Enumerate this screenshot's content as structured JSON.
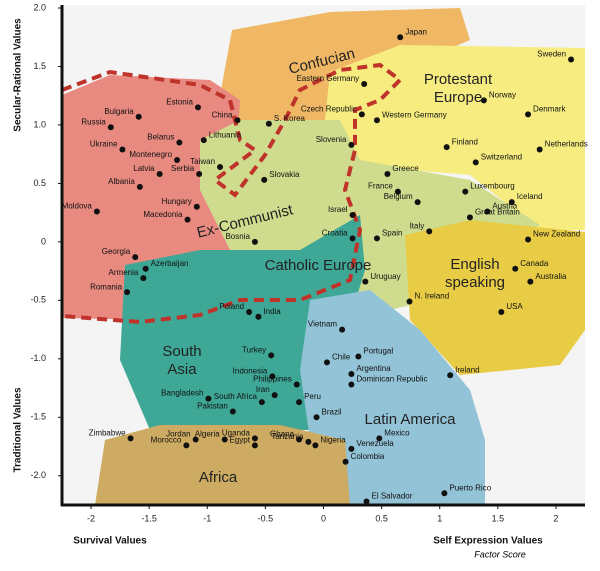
{
  "chart_data": {
    "type": "scatter",
    "ylabel_top": "Secular-Rational Values",
    "ylabel_bottom": "Traditional Values",
    "xlabel_left": "Survival Values",
    "xlabel_right": "Self Expression Values",
    "xlabel_note": "Factor Score",
    "xlim": [
      -2.25,
      2.25
    ],
    "ylim": [
      -2.25,
      2.0
    ],
    "xticks": [
      -2,
      -1.5,
      -1,
      -0.5,
      0,
      0.5,
      1,
      1.5,
      2
    ],
    "yticks": [
      {
        "value": 2,
        "label": "2.0"
      },
      1.5,
      {
        "value": 1,
        "label": "1.0"
      },
      0.5,
      0,
      -0.5,
      {
        "value": -1,
        "label": "-1.0"
      },
      -1.5,
      {
        "value": -2,
        "label": "-2.0"
      }
    ],
    "color": "#111111",
    "regions": [
      {
        "label": [
          "Confucian"
        ]
      },
      {
        "label": [
          "Protestant",
          "Europe"
        ]
      },
      {
        "label": [
          "Ex-Communist"
        ]
      },
      {
        "label": [
          "Catholic Europe"
        ]
      },
      {
        "label": [
          "English",
          "speaking"
        ]
      },
      {
        "label": [
          "South",
          "Asia"
        ]
      },
      {
        "label": [
          "Latin America"
        ]
      },
      {
        "label": [
          "Africa"
        ]
      }
    ],
    "labels": [
      "Japan",
      "Sweden",
      "Eastern Germany",
      "Norway",
      "Denmark",
      "Estonia",
      "Bulgaria",
      "Russia",
      "China",
      "Czech Republic",
      "Western Germany",
      "S. Korea",
      "Ukraine",
      "Belarus",
      "Lithuania",
      "Netherlands",
      "Slovenia",
      "Finland",
      "Montenegro",
      "Switzerland",
      "Latvia",
      "Serbia",
      "Taiwan",
      "Greece",
      "Albania",
      "Slovakia",
      "France",
      "Luxembourg",
      "Iceland",
      "Hungary",
      "Moldova",
      "Belgium",
      "Austria",
      "Israel",
      "Great Britain",
      "Macedonia",
      "Italy",
      "New Zealand",
      "Bosnia",
      "Croatia",
      "Spain",
      "Georgia",
      "Azerbaijan",
      "Canada",
      "Armenia",
      "Australia",
      "Uruguay",
      "Romania",
      "N. Ireland",
      "Poland",
      "India",
      "USA",
      "Vietnam",
      "Turkey",
      "Chile",
      "Portugal",
      "Indonesia",
      "Argentina",
      "Ireland",
      "Philippines",
      "Dominican Republic",
      "Bangladesh",
      "Iran",
      "Peru",
      "South Africa",
      "Pakistan",
      "Brazil",
      "Jordan",
      "Ghana",
      "Mexico",
      "Zimbabwe",
      "Morocco",
      "Uganda",
      "Algeria",
      "Egypt",
      "Nigeria",
      "Tanzania",
      "Venezuela",
      "Colombia",
      "Puerto Rico",
      "El Salvador"
    ],
    "x": [
      0.66,
      2.13,
      0.35,
      1.38,
      1.76,
      -1.08,
      -1.59,
      -1.83,
      -0.74,
      0.33,
      0.46,
      -0.47,
      -1.73,
      -1.24,
      -1.03,
      1.86,
      0.24,
      1.06,
      -1.26,
      1.31,
      -1.41,
      -1.07,
      -0.89,
      0.55,
      -1.58,
      -0.51,
      0.64,
      1.22,
      1.62,
      -1.09,
      -1.95,
      0.81,
      1.41,
      0.25,
      1.26,
      -1.17,
      0.91,
      1.76,
      -0.59,
      0.25,
      0.46,
      -1.62,
      -1.53,
      1.65,
      -1.55,
      1.78,
      0.36,
      -1.69,
      0.74,
      -0.64,
      -0.56,
      1.53,
      0.16,
      -0.45,
      0.03,
      0.3,
      -0.44,
      0.24,
      1.09,
      -0.23,
      0.24,
      -0.99,
      -0.42,
      -0.21,
      -0.53,
      -0.78,
      -0.06,
      -1.1,
      -0.21,
      0.48,
      -1.66,
      -1.18,
      -0.59,
      -0.85,
      -0.59,
      -0.07,
      -0.13,
      0.24,
      0.19,
      1.04,
      0.37
    ],
    "values": [
      1.75,
      1.56,
      1.35,
      1.21,
      1.09,
      1.15,
      1.07,
      0.98,
      1.04,
      1.09,
      1.04,
      1.01,
      0.79,
      0.85,
      0.87,
      0.79,
      0.83,
      0.81,
      0.7,
      0.68,
      0.58,
      0.58,
      0.64,
      0.58,
      0.47,
      0.53,
      0.43,
      0.43,
      0.34,
      0.3,
      0.26,
      0.34,
      0.26,
      0.23,
      0.21,
      0.19,
      0.09,
      0.02,
      0.0,
      0.03,
      0.03,
      -0.13,
      -0.23,
      -0.23,
      -0.31,
      -0.34,
      -0.34,
      -0.43,
      -0.51,
      -0.6,
      -0.64,
      -0.6,
      -0.75,
      -0.97,
      -1.03,
      -0.98,
      -1.15,
      -1.13,
      -1.14,
      -1.22,
      -1.22,
      -1.34,
      -1.31,
      -1.37,
      -1.37,
      -1.45,
      -1.5,
      -1.69,
      -1.69,
      -1.68,
      -1.68,
      -1.74,
      -1.68,
      -1.69,
      -1.74,
      -1.74,
      -1.71,
      -1.77,
      -1.88,
      -2.15,
      -2.22
    ]
  }
}
